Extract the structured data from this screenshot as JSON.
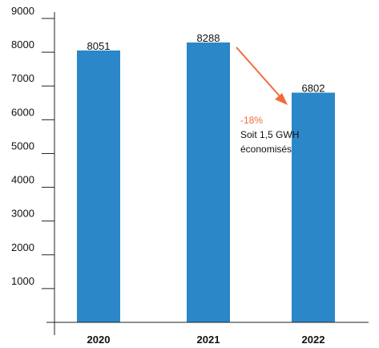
{
  "chart_data": {
    "type": "bar",
    "categories": [
      "2020",
      "2021",
      "2022"
    ],
    "values": [
      8051,
      8288,
      6802
    ],
    "data_labels": [
      "8051",
      "8288",
      "6802"
    ],
    "ylim": [
      0,
      9000
    ],
    "yticks": [
      1000,
      2000,
      3000,
      4000,
      5000,
      6000,
      7000,
      8000,
      9000
    ],
    "ytick_labels": [
      "1000",
      "2000",
      "3000",
      "4000",
      "5000",
      "6000",
      "7000",
      "8000",
      "9000"
    ],
    "grid": false,
    "legend": "none",
    "annotation": {
      "percent": "-18%",
      "text_line1": "Soit 1,5 GWH",
      "text_line2": "économisés",
      "from_category": "2021",
      "to_category": "2022"
    },
    "colors": {
      "bar": "#2b87c8",
      "arrow": "#f26b3a",
      "percent": "#f26b3a",
      "axis": "#222222"
    }
  }
}
